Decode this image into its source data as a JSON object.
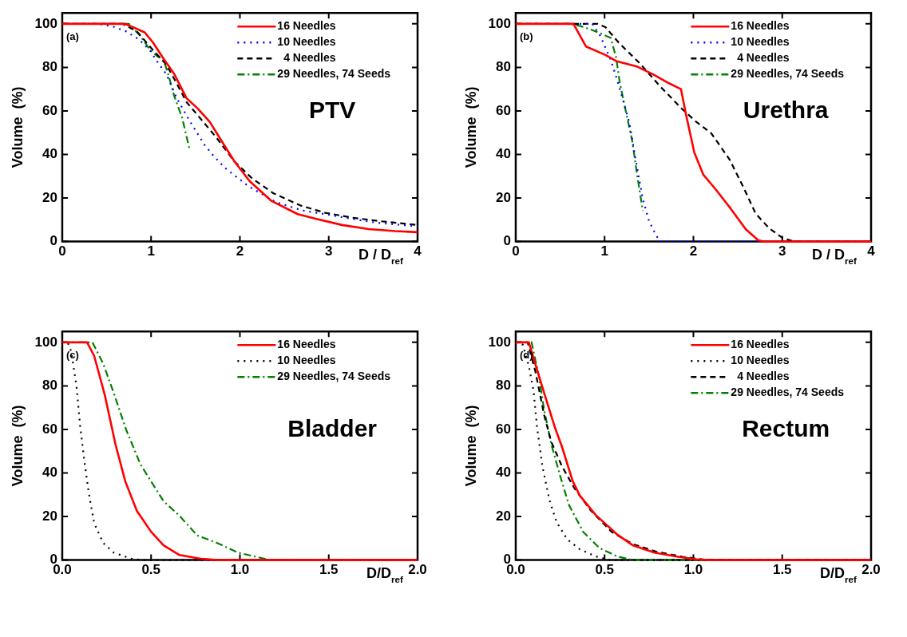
{
  "chart_data": [
    {
      "type": "line",
      "xlabel": "D / D$_{ref}$",
      "ylabel": "Volume  (%)",
      "annotations": [
        "(a)",
        "PTV"
      ],
      "xlim": [
        0,
        4
      ],
      "xticks": [
        0,
        1,
        2,
        3,
        4
      ],
      "ylim": [
        0,
        105
      ],
      "yticks": [
        0,
        20,
        40,
        60,
        80,
        100
      ],
      "grid": false,
      "legend": "top right",
      "marker": "none",
      "series": [
        {
          "name": "16 Needles",
          "color": "#ff0000",
          "line_style": "solid",
          "x": [
            0,
            0.7,
            0.78,
            0.93,
            1.02,
            1.14,
            1.26,
            1.4,
            1.52,
            1.66,
            1.82,
            1.94,
            2.11,
            2.35,
            2.65,
            2.86,
            3.15,
            3.45,
            3.75,
            4
          ],
          "values": [
            100,
            100,
            98.8,
            96,
            91.5,
            84,
            77,
            65.8,
            61.3,
            55,
            44.5,
            36.7,
            27.7,
            18.8,
            12.6,
            10.4,
            7.6,
            5.7,
            4.8,
            4.3
          ]
        },
        {
          "name": "10 Needles",
          "color": "#0000ff",
          "line_style": "dotted",
          "x": [
            0,
            0.4,
            0.57,
            0.72,
            0.87,
            0.99,
            1.08,
            1.17,
            1.29,
            1.43,
            1.6,
            1.7,
            1.83,
            1.97,
            2.11,
            2.26,
            2.4,
            2.7,
            2.96,
            3.26,
            3.53,
            3.83,
            4
          ],
          "values": [
            100,
            100,
            98.8,
            96.5,
            92.6,
            87.6,
            82,
            77,
            65.8,
            55.7,
            44.5,
            39.5,
            33.9,
            29.4,
            25,
            21.6,
            18.2,
            14.3,
            12.6,
            10.4,
            8.7,
            7.6,
            7
          ]
        },
        {
          "name": "  4 Needles",
          "color": "#000000",
          "line_style": "dashed",
          "x": [
            0,
            0.68,
            0.84,
            1.02,
            1.17,
            1.29,
            1.4,
            1.55,
            1.73,
            1.94,
            2.14,
            2.38,
            2.68,
            2.96,
            3.26,
            3.59,
            4
          ],
          "values": [
            100,
            100,
            96.5,
            88,
            81.4,
            72.5,
            64,
            56.8,
            48,
            36.7,
            28.9,
            22.1,
            16.6,
            13.2,
            11,
            9.3,
            7.6
          ]
        },
        {
          "name": "29 Needles, 74 Seeds",
          "color": "#008000",
          "line_style": "dashdot",
          "x": [
            0,
            0.75,
            0.87,
            0.99,
            1.08,
            1.14,
            1.2,
            1.26,
            1.35,
            1.43
          ],
          "values": [
            100,
            100,
            94.9,
            88,
            84.8,
            83.7,
            75.8,
            66.9,
            56.8,
            42.8
          ]
        }
      ]
    },
    {
      "type": "line",
      "xlabel": "D / D$_{ref}$",
      "ylabel": "Volume  (%)",
      "annotations": [
        "(b)",
        "Urethra"
      ],
      "xlim": [
        0,
        4
      ],
      "xticks": [
        0,
        1,
        2,
        3,
        4
      ],
      "ylim": [
        0,
        105
      ],
      "yticks": [
        0,
        20,
        40,
        60,
        80,
        100
      ],
      "grid": false,
      "legend": "top right",
      "marker": "none",
      "series": [
        {
          "name": "16 Needles",
          "color": "#ff0000",
          "line_style": "solid",
          "x": [
            0,
            0.65,
            0.79,
            1.01,
            1.13,
            1.37,
            1.55,
            1.72,
            1.86,
            1.92,
            2.01,
            2.11,
            2.26,
            2.42,
            2.59,
            2.73,
            2.79,
            4
          ],
          "values": [
            100,
            100,
            89.6,
            85.7,
            82.9,
            80.3,
            76.7,
            72.8,
            70,
            57.7,
            40.9,
            30.8,
            23.5,
            15.1,
            5.6,
            0.6,
            0,
            0
          ]
        },
        {
          "name": "10 Needles",
          "color": "#0000ff",
          "line_style": "dotted",
          "x": [
            0,
            0.86,
            0.95,
            1.07,
            1.14,
            1.22,
            1.28,
            1.35,
            1.43,
            1.5,
            1.56,
            1.62,
            4
          ],
          "values": [
            100,
            100,
            94.6,
            83.4,
            74.5,
            63.3,
            54.3,
            37.5,
            19.6,
            9.5,
            4.5,
            0,
            0
          ]
        },
        {
          "name": "  4 Needles",
          "color": "#000000",
          "line_style": "dashed",
          "x": [
            0,
            0.92,
            1.01,
            1.16,
            1.4,
            1.63,
            1.87,
            2.02,
            2.2,
            2.41,
            2.56,
            2.7,
            2.85,
            3,
            3.12,
            4
          ],
          "values": [
            100,
            100,
            98.5,
            91.3,
            81.7,
            71.1,
            61,
            55.4,
            49.8,
            37.5,
            25.2,
            12.9,
            6.2,
            1.7,
            0.2,
            0
          ]
        },
        {
          "name": "29 Needles, 74 Seeds",
          "color": "#008000",
          "line_style": "dashdot",
          "x": [
            0,
            0.62,
            0.77,
            0.95,
            1.07,
            1.13,
            1.17,
            1.25,
            1.31,
            1.37,
            1.43
          ],
          "values": [
            100,
            100,
            98.5,
            95.7,
            93.5,
            84.5,
            73.3,
            57.7,
            46.5,
            29.7,
            14.1
          ]
        }
      ]
    },
    {
      "type": "line",
      "xlabel": "D/D$_{ref}$",
      "ylabel": "Volume  (%)",
      "annotations": [
        "(c)",
        "Bladder"
      ],
      "xlim": [
        0,
        2
      ],
      "xticks": [
        {
          "value": 0,
          "label": "0.0"
        },
        {
          "value": 0.5,
          "label": "0.5"
        },
        {
          "value": 1,
          "label": "1.0"
        },
        {
          "value": 1.5,
          "label": "1.5"
        },
        {
          "value": 2,
          "label": "2.0"
        }
      ],
      "ylim": [
        0,
        105
      ],
      "yticks": [
        0,
        20,
        40,
        60,
        80,
        100
      ],
      "grid": false,
      "legend": "top right",
      "marker": "none",
      "series": [
        {
          "name": "16 Needles",
          "color": "#ff0000",
          "line_style": "solid",
          "x": [
            0,
            0.14,
            0.18,
            0.24,
            0.3,
            0.355,
            0.42,
            0.5,
            0.57,
            0.66,
            0.78,
            0.87,
            2
          ],
          "values": [
            100,
            100,
            93.7,
            75.6,
            53,
            36.1,
            22.6,
            13,
            6.8,
            2.3,
            0.6,
            0,
            0
          ]
        },
        {
          "name": "10 Needles",
          "color": "#000000",
          "line_style": "dotted",
          "x": [
            0,
            0.03,
            0.05,
            0.08,
            0.1,
            0.125,
            0.15,
            0.18,
            0.23,
            0.29,
            0.39,
            0.45,
            2
          ],
          "values": [
            100,
            100,
            95.9,
            80.1,
            62.1,
            45.1,
            30.5,
            16.9,
            7.9,
            3.4,
            0.6,
            0,
            0
          ]
        },
        {
          "name": "29 Needles, 74 Seeds",
          "color": "#008000",
          "line_style": "dashdot",
          "x": [
            0,
            0.17,
            0.23,
            0.29,
            0.36,
            0.44,
            0.5,
            0.57,
            0.66,
            0.76,
            0.87,
            0.99,
            1.08,
            1.16,
            1.21,
            2
          ],
          "values": [
            100,
            100,
            90.3,
            76.7,
            59.8,
            44,
            36.1,
            27.1,
            20.3,
            11.3,
            7.9,
            3.4,
            1.7,
            0.2,
            0,
            0
          ]
        }
      ]
    },
    {
      "type": "line",
      "xlabel": "D/D$_{ref}$",
      "ylabel": "Volume  (%)",
      "annotations": [
        "(d)",
        "Rectum"
      ],
      "xlim": [
        0,
        2
      ],
      "xticks": [
        {
          "value": 0,
          "label": "0.0"
        },
        {
          "value": 0.5,
          "label": "0.5"
        },
        {
          "value": 1,
          "label": "1.0"
        },
        {
          "value": 1.5,
          "label": "1.5"
        },
        {
          "value": 2,
          "label": "2.0"
        }
      ],
      "ylim": [
        0,
        105
      ],
      "yticks": [
        0,
        20,
        40,
        60,
        80,
        100
      ],
      "grid": false,
      "legend": "top right",
      "marker": "none",
      "series": [
        {
          "name": "16 Needles",
          "color": "#ff0000",
          "line_style": "solid",
          "x": [
            0,
            0.074,
            0.11,
            0.16,
            0.22,
            0.26,
            0.32,
            0.36,
            0.45,
            0.57,
            0.66,
            0.78,
            0.9,
            1.02,
            1.09,
            2
          ],
          "values": [
            100,
            100,
            90.1,
            76.7,
            61,
            52.1,
            36.4,
            29.7,
            20.7,
            11.8,
            6.7,
            3.4,
            1.7,
            0.3,
            0,
            0
          ]
        },
        {
          "name": "10 Needles",
          "color": "#000000",
          "line_style": "dotted",
          "x": [
            0,
            0.04,
            0.074,
            0.1,
            0.12,
            0.15,
            0.19,
            0.23,
            0.29,
            0.36,
            0.45,
            0.53,
            2
          ],
          "values": [
            100,
            98.9,
            89,
            77.8,
            61,
            43.1,
            27.4,
            17.4,
            9.5,
            5,
            1.7,
            0,
            0
          ]
        },
        {
          "name": "  4 Needles",
          "color": "#000000",
          "line_style": "dashed",
          "x": [
            0,
            0.067,
            0.11,
            0.16,
            0.2,
            0.26,
            0.33,
            0.42,
            0.54,
            0.66,
            0.79,
            0.94,
            1.06,
            2
          ],
          "values": [
            100,
            100,
            86.8,
            66.6,
            54.3,
            43.1,
            33,
            23,
            12.9,
            7.3,
            3.9,
            1.5,
            0.2,
            0
          ]
        },
        {
          "name": "29 Needles, 74 Seeds",
          "color": "#008000",
          "line_style": "dashdot",
          "x": [
            0,
            0.089,
            0.13,
            0.16,
            0.2,
            0.25,
            0.3,
            0.38,
            0.47,
            0.57,
            0.66,
            2
          ],
          "values": [
            100,
            100,
            84.5,
            68.9,
            53.2,
            38.6,
            25.2,
            12.9,
            5.6,
            1.7,
            0,
            0
          ]
        }
      ]
    }
  ]
}
